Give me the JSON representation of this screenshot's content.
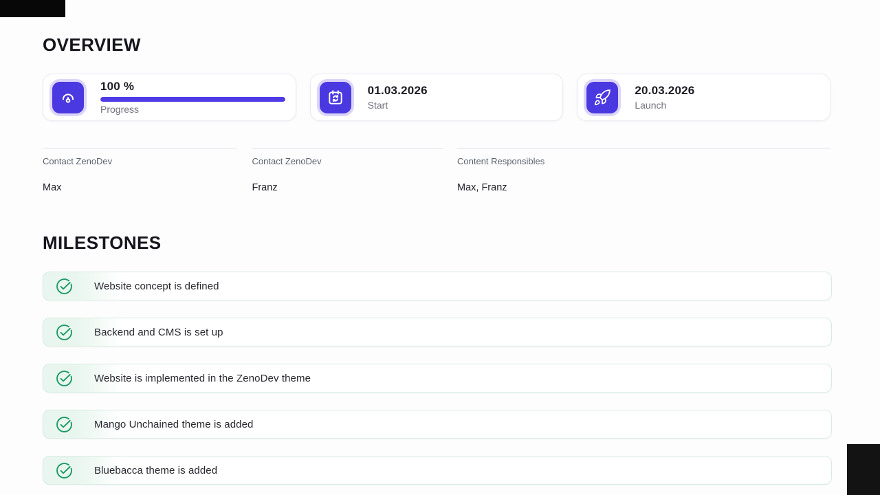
{
  "overview": {
    "heading": "OVERVIEW",
    "cards": [
      {
        "icon": "gauge-icon",
        "value": "100 %",
        "label": "Progress",
        "progress_percent": 100
      },
      {
        "icon": "calendar-sync-icon",
        "value": "01.03.2026",
        "label": "Start"
      },
      {
        "icon": "rocket-icon",
        "value": "20.03.2026",
        "label": "Launch"
      }
    ],
    "contacts": [
      {
        "label": "Contact ZenoDev",
        "value": "Max"
      },
      {
        "label": "Contact ZenoDev",
        "value": "Franz"
      },
      {
        "label": "Content Responsibles",
        "value": "Max, Franz"
      }
    ]
  },
  "milestones": {
    "heading": "MILESTONES",
    "items": [
      {
        "label": "Website concept is defined",
        "done": true
      },
      {
        "label": "Backend and CMS is set up",
        "done": true
      },
      {
        "label": "Website is implemented in the ZenoDev theme",
        "done": true
      },
      {
        "label": "Mango Unchained theme is added",
        "done": true
      },
      {
        "label": "Bluebacca theme is added",
        "done": true
      }
    ]
  },
  "colors": {
    "accent_purple": "#4a38e0",
    "accent_purple_ring": "#dcd5f9",
    "progress_bar": "#4f3be6",
    "milestone_green": "#1d9b63",
    "milestone_tint": "#e9f6ef",
    "milestone_border": "#d8ebe1"
  }
}
